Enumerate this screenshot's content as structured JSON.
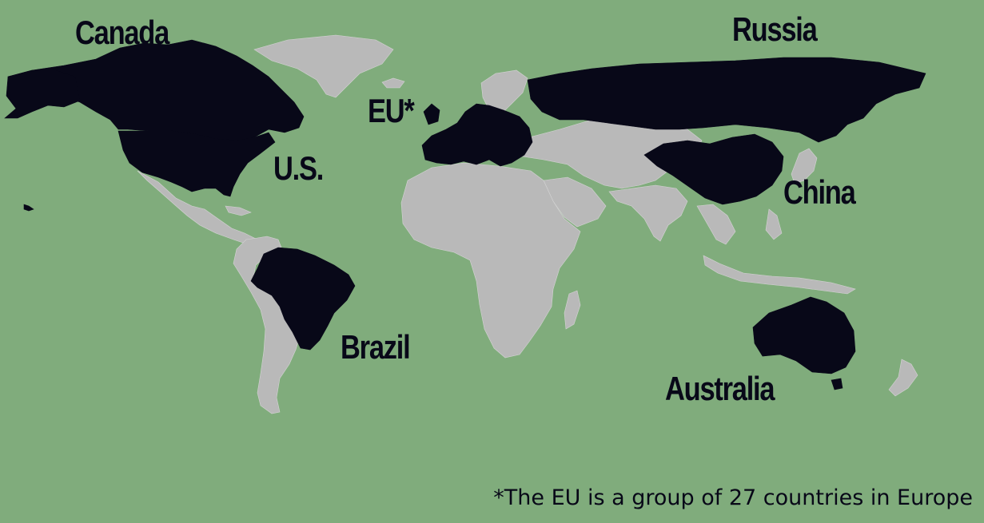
{
  "colors": {
    "ocean": "#80ac7c",
    "highlighted_country": "#080818",
    "other_land": "#b9b9b9",
    "label_text": "#080818"
  },
  "labels": {
    "canada": "Canada",
    "russia": "Russia",
    "eu": "EU*",
    "us": "U.S.",
    "china": "China",
    "brazil": "Brazil",
    "australia": "Australia"
  },
  "footnote": "*The EU is a group of 27 countries in Europe"
}
